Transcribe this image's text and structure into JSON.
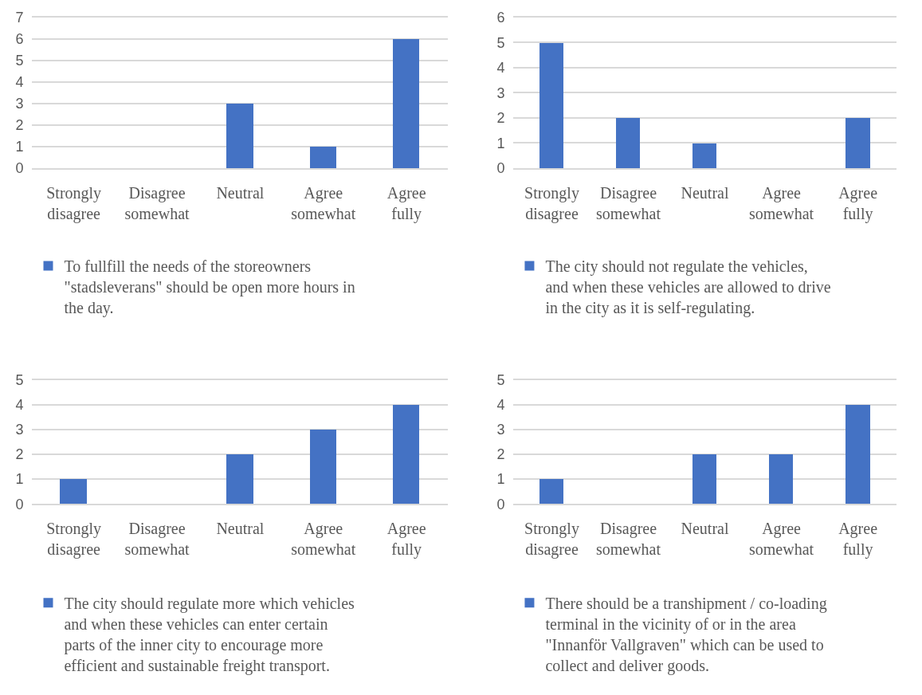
{
  "chart_data": [
    {
      "type": "bar",
      "categories": [
        "Strongly disagree",
        "Disagree somewhat",
        "Neutral",
        "Agree somewhat",
        "Agree fully"
      ],
      "series": [
        {
          "name": "To fullfill the needs of the storeowners \"stadsleverans\" should be open more hours in the day.",
          "color": "#4472c4",
          "values": [
            0,
            0,
            3,
            1,
            6
          ]
        }
      ],
      "ylim": [
        0,
        7
      ],
      "yticks": [
        0,
        1,
        2,
        3,
        4,
        5,
        6,
        7
      ],
      "grid": "y",
      "legend": "bottom"
    },
    {
      "type": "bar",
      "categories": [
        "Strongly disagree",
        "Disagree somewhat",
        "Neutral",
        "Agree somewhat",
        "Agree fully"
      ],
      "series": [
        {
          "name": "The city should not regulate the vehicles, and when these vehicles are allowed to drive in the city as it is self-regulating.",
          "color": "#4472c4",
          "values": [
            5,
            2,
            1,
            0,
            2
          ]
        }
      ],
      "ylim": [
        0,
        6
      ],
      "yticks": [
        0,
        1,
        2,
        3,
        4,
        5,
        6
      ],
      "grid": "y",
      "legend": "bottom"
    },
    {
      "type": "bar",
      "categories": [
        "Strongly disagree",
        "Disagree somewhat",
        "Neutral",
        "Agree somewhat",
        "Agree fully"
      ],
      "series": [
        {
          "name": "The city should regulate more which vehicles and when these vehicles can enter certain parts of the inner city to encourage more efficient and sustainable freight transport.",
          "color": "#4472c4",
          "values": [
            1,
            0,
            2,
            3,
            4
          ]
        }
      ],
      "ylim": [
        0,
        5
      ],
      "yticks": [
        0,
        1,
        2,
        3,
        4,
        5
      ],
      "grid": "y",
      "legend": "bottom"
    },
    {
      "type": "bar",
      "categories": [
        "Strongly disagree",
        "Disagree somewhat",
        "Neutral",
        "Agree somewhat",
        "Agree fully"
      ],
      "series": [
        {
          "name": "There should be a transhipment / co-loading terminal in the vicinity of or in the area \"Innanför Vallgraven\" which can be used to collect and deliver goods.",
          "color": "#4472c4",
          "values": [
            1,
            0,
            2,
            2,
            4
          ]
        }
      ],
      "ylim": [
        0,
        5
      ],
      "yticks": [
        0,
        1,
        2,
        3,
        4,
        5
      ],
      "grid": "y",
      "legend": "bottom"
    }
  ]
}
